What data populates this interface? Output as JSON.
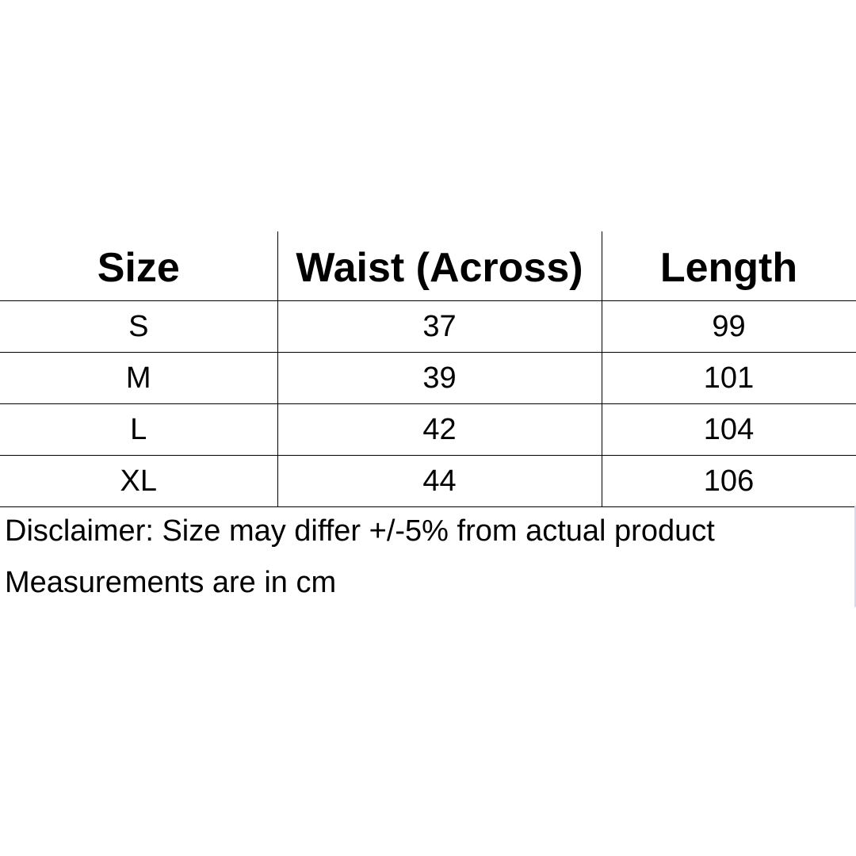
{
  "table": {
    "headers": [
      "Size",
      "Waist (Across)",
      "Length"
    ],
    "rows": [
      [
        "S",
        "37",
        "99"
      ],
      [
        "M",
        "39",
        "101"
      ],
      [
        "L",
        "42",
        "104"
      ],
      [
        "XL",
        "44",
        "106"
      ]
    ]
  },
  "notes": {
    "disclaimer": "Disclaimer: Size may differ +/-5% from actual product",
    "units": "Measurements are in cm"
  }
}
